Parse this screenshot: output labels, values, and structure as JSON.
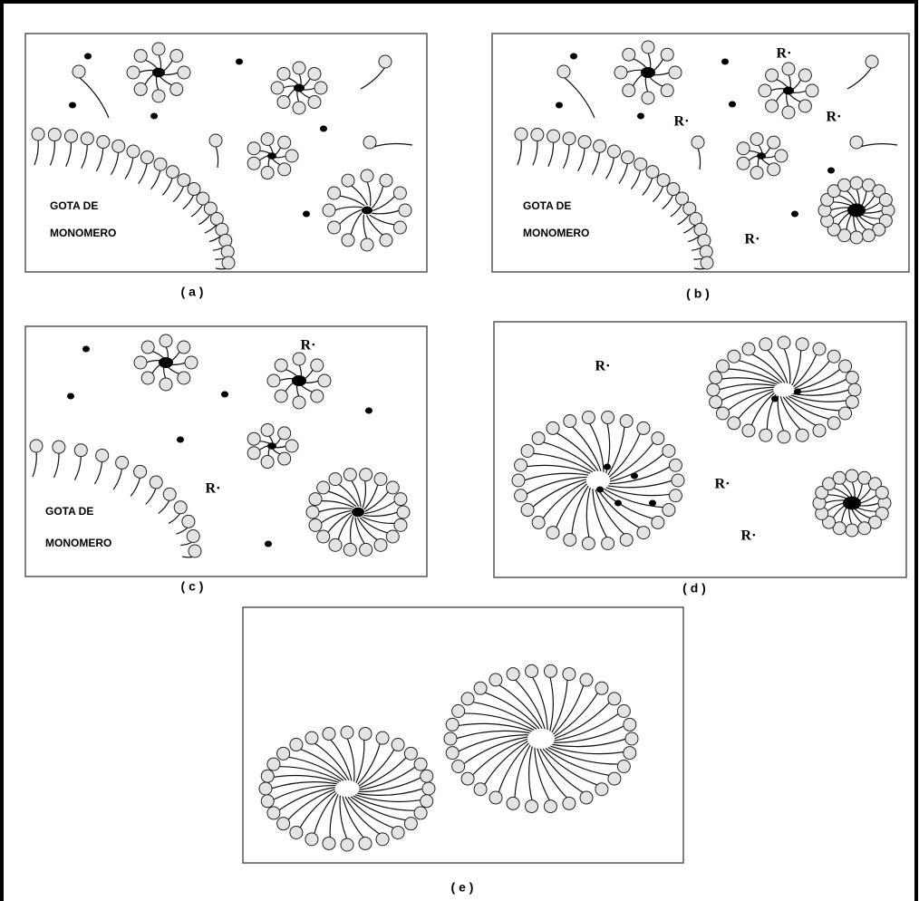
{
  "panels": [
    {
      "caption": "( a )",
      "droplet": [
        "GOTA DE",
        "MONOMERO"
      ],
      "radicals": []
    },
    {
      "caption": "( b )",
      "droplet": [
        "GOTA DE",
        "MONOMERO"
      ],
      "radicals": [
        "R·",
        "R·",
        "R·",
        "R·"
      ]
    },
    {
      "caption": "( c )",
      "droplet": [
        "GOTA DE",
        "MONOMERO"
      ],
      "radicals": [
        "R·",
        "R·"
      ]
    },
    {
      "caption": "( d )",
      "droplet": [],
      "radicals": [
        "R·",
        "R·",
        "R·"
      ]
    },
    {
      "caption": "( e )",
      "droplet": [],
      "radicals": []
    }
  ]
}
